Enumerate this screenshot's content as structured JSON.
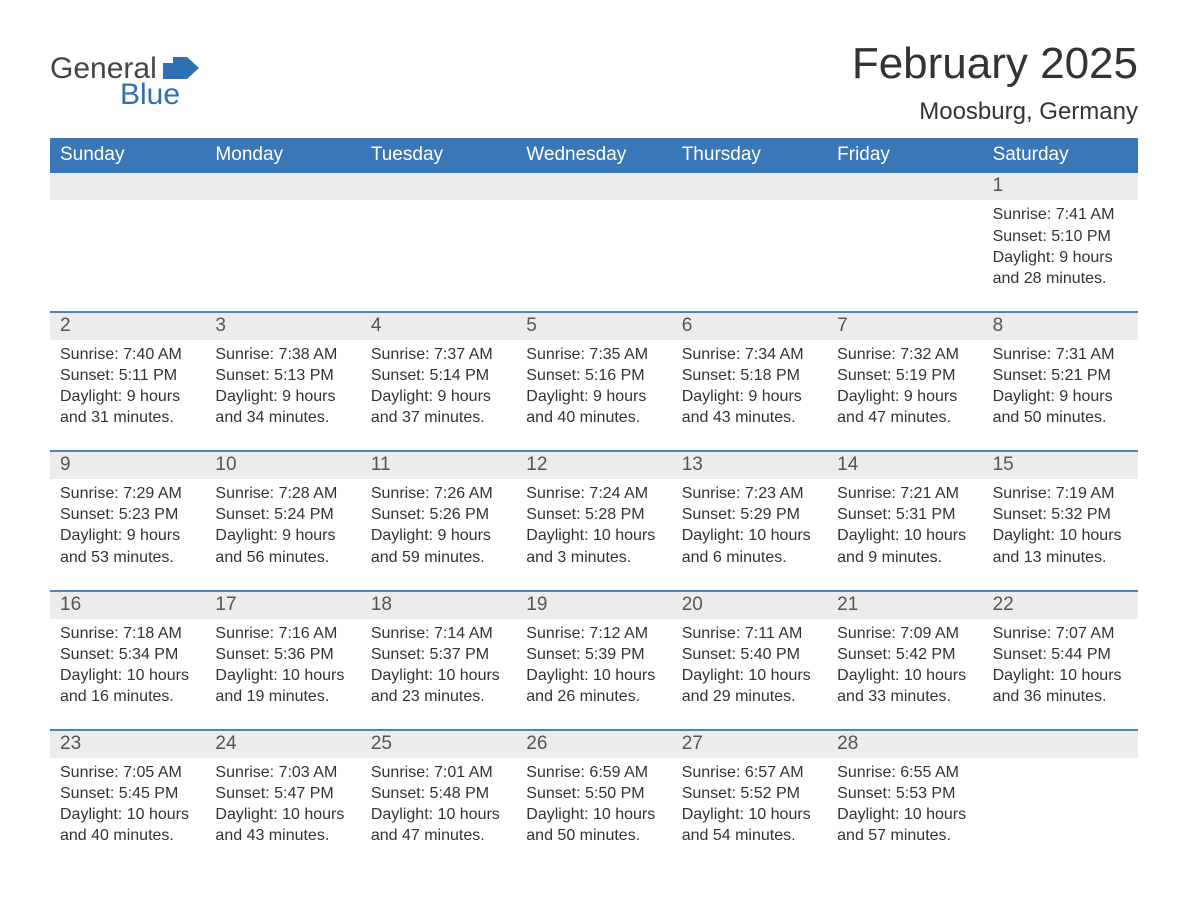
{
  "logo": {
    "text_general": "General",
    "text_blue": "Blue",
    "flag_color": "#2f6fb3"
  },
  "title": "February 2025",
  "location": "Moosburg, Germany",
  "colors": {
    "header_bg": "#3a77b7",
    "header_text": "#ffffff",
    "daynum_bg": "#ececec",
    "week_rule": "#4a85c0",
    "body_text": "#333333",
    "daynum_text": "#555555",
    "page_bg": "#ffffff"
  },
  "typography": {
    "title_fontsize": 44,
    "location_fontsize": 24,
    "dow_fontsize": 19,
    "daynum_fontsize": 19,
    "body_fontsize": 16
  },
  "days_of_week": [
    "Sunday",
    "Monday",
    "Tuesday",
    "Wednesday",
    "Thursday",
    "Friday",
    "Saturday"
  ],
  "weeks": [
    [
      null,
      null,
      null,
      null,
      null,
      null,
      {
        "n": "1",
        "sunrise": "Sunrise: 7:41 AM",
        "sunset": "Sunset: 5:10 PM",
        "dl1": "Daylight: 9 hours",
        "dl2": "and 28 minutes."
      }
    ],
    [
      {
        "n": "2",
        "sunrise": "Sunrise: 7:40 AM",
        "sunset": "Sunset: 5:11 PM",
        "dl1": "Daylight: 9 hours",
        "dl2": "and 31 minutes."
      },
      {
        "n": "3",
        "sunrise": "Sunrise: 7:38 AM",
        "sunset": "Sunset: 5:13 PM",
        "dl1": "Daylight: 9 hours",
        "dl2": "and 34 minutes."
      },
      {
        "n": "4",
        "sunrise": "Sunrise: 7:37 AM",
        "sunset": "Sunset: 5:14 PM",
        "dl1": "Daylight: 9 hours",
        "dl2": "and 37 minutes."
      },
      {
        "n": "5",
        "sunrise": "Sunrise: 7:35 AM",
        "sunset": "Sunset: 5:16 PM",
        "dl1": "Daylight: 9 hours",
        "dl2": "and 40 minutes."
      },
      {
        "n": "6",
        "sunrise": "Sunrise: 7:34 AM",
        "sunset": "Sunset: 5:18 PM",
        "dl1": "Daylight: 9 hours",
        "dl2": "and 43 minutes."
      },
      {
        "n": "7",
        "sunrise": "Sunrise: 7:32 AM",
        "sunset": "Sunset: 5:19 PM",
        "dl1": "Daylight: 9 hours",
        "dl2": "and 47 minutes."
      },
      {
        "n": "8",
        "sunrise": "Sunrise: 7:31 AM",
        "sunset": "Sunset: 5:21 PM",
        "dl1": "Daylight: 9 hours",
        "dl2": "and 50 minutes."
      }
    ],
    [
      {
        "n": "9",
        "sunrise": "Sunrise: 7:29 AM",
        "sunset": "Sunset: 5:23 PM",
        "dl1": "Daylight: 9 hours",
        "dl2": "and 53 minutes."
      },
      {
        "n": "10",
        "sunrise": "Sunrise: 7:28 AM",
        "sunset": "Sunset: 5:24 PM",
        "dl1": "Daylight: 9 hours",
        "dl2": "and 56 minutes."
      },
      {
        "n": "11",
        "sunrise": "Sunrise: 7:26 AM",
        "sunset": "Sunset: 5:26 PM",
        "dl1": "Daylight: 9 hours",
        "dl2": "and 59 minutes."
      },
      {
        "n": "12",
        "sunrise": "Sunrise: 7:24 AM",
        "sunset": "Sunset: 5:28 PM",
        "dl1": "Daylight: 10 hours",
        "dl2": "and 3 minutes."
      },
      {
        "n": "13",
        "sunrise": "Sunrise: 7:23 AM",
        "sunset": "Sunset: 5:29 PM",
        "dl1": "Daylight: 10 hours",
        "dl2": "and 6 minutes."
      },
      {
        "n": "14",
        "sunrise": "Sunrise: 7:21 AM",
        "sunset": "Sunset: 5:31 PM",
        "dl1": "Daylight: 10 hours",
        "dl2": "and 9 minutes."
      },
      {
        "n": "15",
        "sunrise": "Sunrise: 7:19 AM",
        "sunset": "Sunset: 5:32 PM",
        "dl1": "Daylight: 10 hours",
        "dl2": "and 13 minutes."
      }
    ],
    [
      {
        "n": "16",
        "sunrise": "Sunrise: 7:18 AM",
        "sunset": "Sunset: 5:34 PM",
        "dl1": "Daylight: 10 hours",
        "dl2": "and 16 minutes."
      },
      {
        "n": "17",
        "sunrise": "Sunrise: 7:16 AM",
        "sunset": "Sunset: 5:36 PM",
        "dl1": "Daylight: 10 hours",
        "dl2": "and 19 minutes."
      },
      {
        "n": "18",
        "sunrise": "Sunrise: 7:14 AM",
        "sunset": "Sunset: 5:37 PM",
        "dl1": "Daylight: 10 hours",
        "dl2": "and 23 minutes."
      },
      {
        "n": "19",
        "sunrise": "Sunrise: 7:12 AM",
        "sunset": "Sunset: 5:39 PM",
        "dl1": "Daylight: 10 hours",
        "dl2": "and 26 minutes."
      },
      {
        "n": "20",
        "sunrise": "Sunrise: 7:11 AM",
        "sunset": "Sunset: 5:40 PM",
        "dl1": "Daylight: 10 hours",
        "dl2": "and 29 minutes."
      },
      {
        "n": "21",
        "sunrise": "Sunrise: 7:09 AM",
        "sunset": "Sunset: 5:42 PM",
        "dl1": "Daylight: 10 hours",
        "dl2": "and 33 minutes."
      },
      {
        "n": "22",
        "sunrise": "Sunrise: 7:07 AM",
        "sunset": "Sunset: 5:44 PM",
        "dl1": "Daylight: 10 hours",
        "dl2": "and 36 minutes."
      }
    ],
    [
      {
        "n": "23",
        "sunrise": "Sunrise: 7:05 AM",
        "sunset": "Sunset: 5:45 PM",
        "dl1": "Daylight: 10 hours",
        "dl2": "and 40 minutes."
      },
      {
        "n": "24",
        "sunrise": "Sunrise: 7:03 AM",
        "sunset": "Sunset: 5:47 PM",
        "dl1": "Daylight: 10 hours",
        "dl2": "and 43 minutes."
      },
      {
        "n": "25",
        "sunrise": "Sunrise: 7:01 AM",
        "sunset": "Sunset: 5:48 PM",
        "dl1": "Daylight: 10 hours",
        "dl2": "and 47 minutes."
      },
      {
        "n": "26",
        "sunrise": "Sunrise: 6:59 AM",
        "sunset": "Sunset: 5:50 PM",
        "dl1": "Daylight: 10 hours",
        "dl2": "and 50 minutes."
      },
      {
        "n": "27",
        "sunrise": "Sunrise: 6:57 AM",
        "sunset": "Sunset: 5:52 PM",
        "dl1": "Daylight: 10 hours",
        "dl2": "and 54 minutes."
      },
      {
        "n": "28",
        "sunrise": "Sunrise: 6:55 AM",
        "sunset": "Sunset: 5:53 PM",
        "dl1": "Daylight: 10 hours",
        "dl2": "and 57 minutes."
      },
      null
    ]
  ]
}
